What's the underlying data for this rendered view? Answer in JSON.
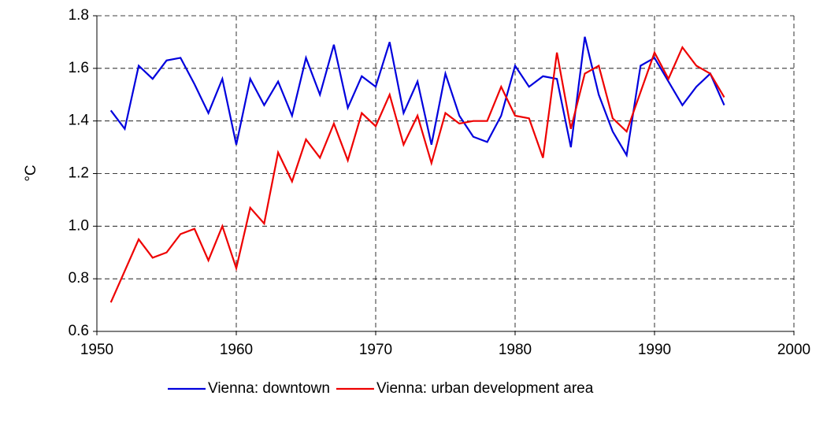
{
  "chart_data": {
    "type": "line",
    "ylabel": "°C",
    "x": [
      1951,
      1952,
      1953,
      1954,
      1955,
      1956,
      1957,
      1958,
      1959,
      1960,
      1961,
      1962,
      1963,
      1964,
      1965,
      1966,
      1967,
      1968,
      1969,
      1970,
      1971,
      1972,
      1973,
      1974,
      1975,
      1976,
      1977,
      1978,
      1979,
      1980,
      1981,
      1982,
      1983,
      1984,
      1985,
      1986,
      1987,
      1988,
      1989,
      1990,
      1991,
      1992,
      1993,
      1994,
      1995
    ],
    "series": [
      {
        "name": "Vienna: downtown",
        "color": "#0000dd",
        "values": [
          1.44,
          1.37,
          1.61,
          1.56,
          1.63,
          1.64,
          1.54,
          1.43,
          1.56,
          1.31,
          1.56,
          1.46,
          1.55,
          1.42,
          1.64,
          1.5,
          1.69,
          1.45,
          1.57,
          1.53,
          1.7,
          1.43,
          1.55,
          1.31,
          1.58,
          1.42,
          1.34,
          1.32,
          1.42,
          1.61,
          1.53,
          1.57,
          1.56,
          1.3,
          1.72,
          1.5,
          1.36,
          1.27,
          1.61,
          1.64,
          1.55,
          1.46,
          1.53,
          1.58,
          1.46
        ]
      },
      {
        "name": "Vienna: urban development area",
        "color": "#ee0000",
        "values": [
          0.71,
          0.83,
          0.95,
          0.88,
          0.9,
          0.97,
          0.99,
          0.87,
          1.0,
          0.84,
          1.07,
          1.01,
          1.28,
          1.17,
          1.33,
          1.26,
          1.39,
          1.25,
          1.43,
          1.38,
          1.5,
          1.31,
          1.42,
          1.24,
          1.43,
          1.39,
          1.4,
          1.4,
          1.53,
          1.42,
          1.41,
          1.26,
          1.66,
          1.37,
          1.58,
          1.61,
          1.41,
          1.36,
          1.51,
          1.66,
          1.56,
          1.68,
          1.61,
          1.58,
          1.49
        ]
      }
    ],
    "xlim": [
      1950,
      2000
    ],
    "xticks": [
      1950,
      1960,
      1970,
      1980,
      1990,
      2000
    ],
    "ylim": [
      0.6,
      1.8
    ],
    "yticks": [
      0.6,
      0.8,
      {
        "value": 1.0,
        "label": "1.0"
      },
      1.2,
      1.4,
      1.6,
      1.8
    ],
    "grid": true,
    "legend": "bottom"
  }
}
